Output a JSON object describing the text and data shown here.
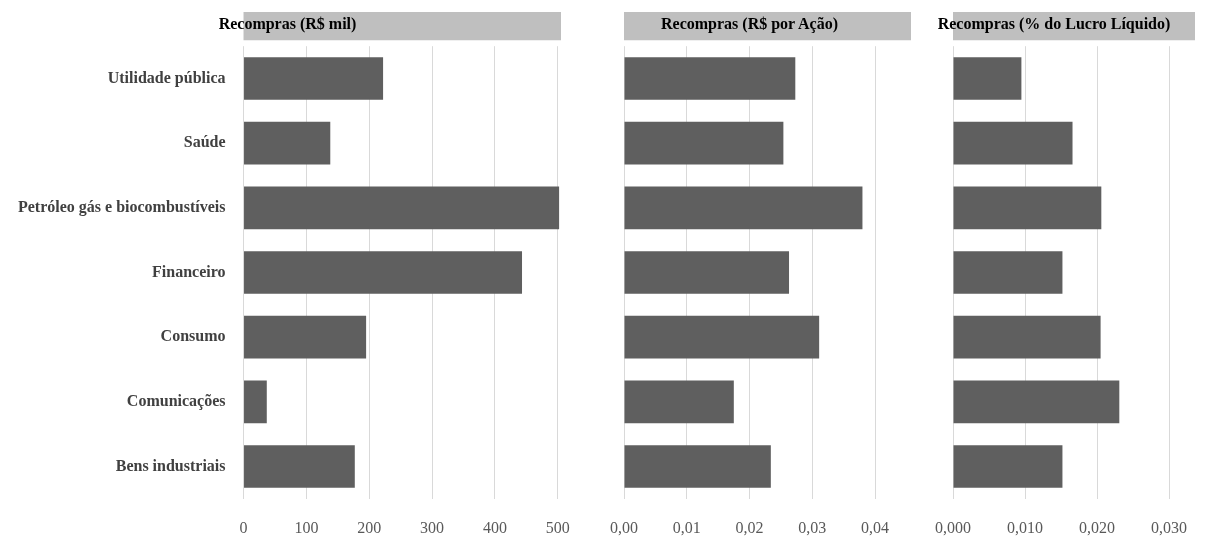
{
  "chart_data": [
    {
      "type": "bar",
      "orientation": "horizontal",
      "title": "Recompras (R$ mil)",
      "categories": [
        "Utilidade pública",
        "Saúde",
        "Petróleo gás e biocombustíveis",
        "Financeiro",
        "Consumo",
        "Comunicações",
        "Bens industriais"
      ],
      "values": [
        222,
        138,
        502,
        443,
        195,
        37,
        177
      ],
      "color": "#5f5f5f",
      "xlim": [
        0,
        505
      ],
      "xticks": [
        0,
        100,
        200,
        300,
        400,
        500
      ],
      "grid": "x"
    },
    {
      "type": "bar",
      "orientation": "horizontal",
      "title": "Recompras (R$ por Ação)",
      "categories": [
        null,
        null,
        null,
        null,
        null,
        null,
        null
      ],
      "values": [
        0.0273,
        0.0254,
        0.038,
        0.0263,
        0.0311,
        0.0175,
        0.0234
      ],
      "color": "#5f5f5f",
      "xlim": [
        0,
        0.04
      ],
      "xticks": [
        {
          "value": 0,
          "label": "0,00"
        },
        {
          "value": 0.01,
          "label": "0,01"
        },
        {
          "value": 0.02,
          "label": "0,02"
        },
        {
          "value": 0.03,
          "label": "0,03"
        },
        {
          "value": 0.04,
          "label": "0,04"
        }
      ],
      "grid": "x",
      "tick_labels": "x"
    },
    {
      "type": "bar",
      "orientation": "horizontal",
      "title": "Recompras (% do Lucro Líquido)",
      "categories": [
        null,
        null,
        null,
        null,
        null,
        null,
        null
      ],
      "values": [
        0.0095,
        0.0166,
        0.0206,
        0.0152,
        0.0205,
        0.0231,
        0.0152
      ],
      "color": "#5f5f5f",
      "xlim": [
        0,
        0.03
      ],
      "xticks": [
        {
          "value": 0,
          "label": "0,000"
        },
        {
          "value": 0.01,
          "label": "0,010"
        },
        {
          "value": 0.02,
          "label": "0,020"
        },
        {
          "value": 0.03,
          "label": "0,030"
        }
      ],
      "grid": "x",
      "tick_labels": "x"
    }
  ]
}
